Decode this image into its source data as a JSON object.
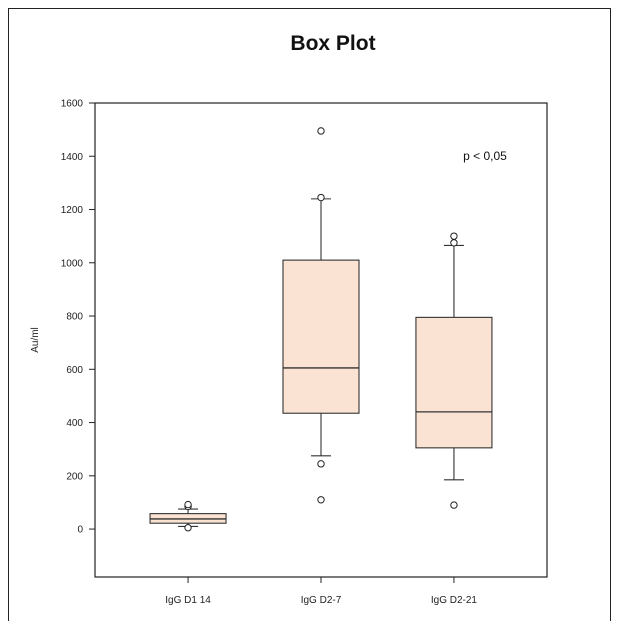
{
  "chart_data": {
    "type": "box",
    "title": "Box Plot",
    "xlabel": "",
    "ylabel": "Au/ml",
    "ylim": [
      -180,
      1600
    ],
    "yticks": [
      0,
      200,
      400,
      600,
      800,
      1000,
      1200,
      1400,
      1600
    ],
    "annotation": "p < 0,05",
    "box_fill": "#fbe3d3",
    "box_stroke": "#333333",
    "categories": [
      "IgG D1 14",
      "IgG D2-7",
      "IgG D2-21"
    ],
    "boxes": [
      {
        "name": "IgG D1 14",
        "whisker_low": 10,
        "q1": 22,
        "median": 38,
        "q3": 58,
        "whisker_high": 75,
        "outliers": [
          5,
          85,
          92
        ]
      },
      {
        "name": "IgG D2-7",
        "whisker_low": 275,
        "q1": 435,
        "median": 605,
        "q3": 1010,
        "whisker_high": 1240,
        "outliers": [
          110,
          245,
          1245,
          1495
        ]
      },
      {
        "name": "IgG D2-21",
        "whisker_low": 185,
        "q1": 305,
        "median": 440,
        "q3": 795,
        "whisker_high": 1065,
        "outliers": [
          90,
          1075,
          1100
        ]
      }
    ]
  }
}
